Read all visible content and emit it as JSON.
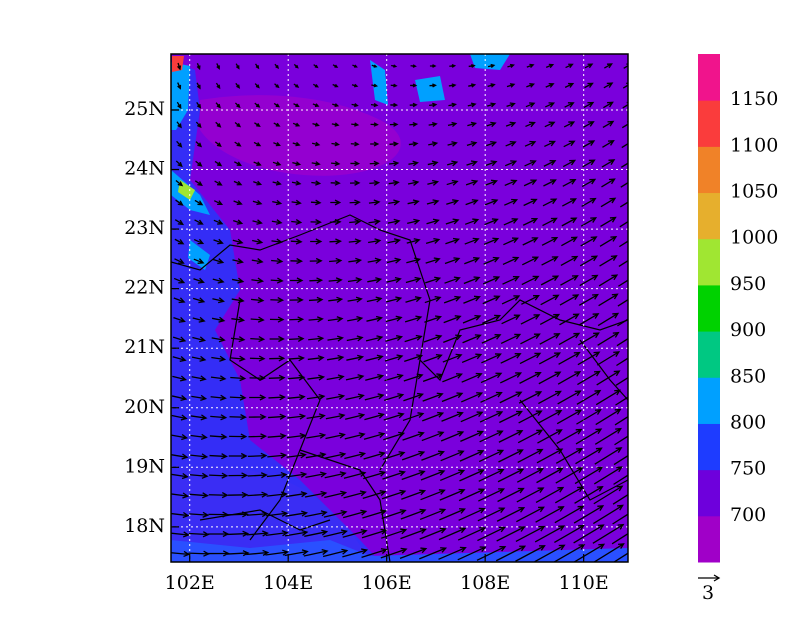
{
  "map": {
    "xlim": [
      101.62,
      110.9
    ],
    "ylim": [
      17.41,
      25.94
    ],
    "xticks": [
      {
        "value": 102,
        "label": "102E"
      },
      {
        "value": 104,
        "label": "104E"
      },
      {
        "value": 106,
        "label": "106E"
      },
      {
        "value": 108,
        "label": "108E"
      },
      {
        "value": 110,
        "label": "110E"
      }
    ],
    "yticks": [
      {
        "value": 18,
        "label": "18N"
      },
      {
        "value": 19,
        "label": "19N"
      },
      {
        "value": 20,
        "label": "20N"
      },
      {
        "value": 21,
        "label": "21N"
      },
      {
        "value": 22,
        "label": "22N"
      },
      {
        "value": 23,
        "label": "23N"
      },
      {
        "value": 24,
        "label": "24N"
      },
      {
        "value": 25,
        "label": "25N"
      }
    ],
    "grid": true,
    "colorbar": {
      "levels": [
        700,
        750,
        800,
        850,
        900,
        950,
        1000,
        1050,
        1100,
        1150
      ],
      "colors": [
        "#a000c8",
        "#6e00dc",
        "#1e3cff",
        "#00a0ff",
        "#00c882",
        "#00d200",
        "#a0e632",
        "#e6af2d",
        "#f08228",
        "#fa3c3c",
        "#f0148c"
      ]
    },
    "reference_vector": {
      "value": 3,
      "label": "3"
    }
  }
}
